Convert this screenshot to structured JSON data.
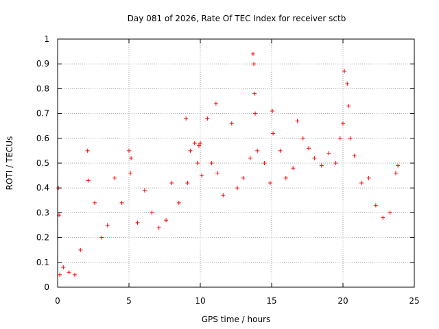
{
  "chart_data": {
    "type": "scatter",
    "title": "Day 081 of 2026, Rate Of TEC Index for receiver sctb",
    "xlabel": "GPS time / hours",
    "ylabel": "ROTI / TECUs",
    "xlim": [
      0,
      25
    ],
    "ylim": [
      0,
      1
    ],
    "x_ticks": [
      "0",
      "5",
      "10",
      "15",
      "20",
      "25"
    ],
    "y_ticks": [
      "0",
      "0.1",
      "0.2",
      "0.3",
      "0.4",
      "0.5",
      "0.6",
      "0.7",
      "0.8",
      "0.9",
      "1"
    ],
    "grid": true,
    "marker": "plus",
    "color": "#ff0000",
    "series": [
      {
        "x": [
          0.05,
          0.1,
          0.15,
          0.4,
          0.8,
          1.2,
          1.6,
          2.1,
          2.15,
          2.6,
          3.1,
          3.5,
          4.0,
          4.5,
          5.0,
          5.1,
          5.15,
          5.6,
          6.1,
          6.6,
          7.1,
          7.6,
          8.0,
          8.5,
          9.0,
          9.1,
          9.3,
          9.6,
          9.8,
          9.9,
          10.0,
          10.1,
          10.5,
          10.8,
          11.1,
          11.2,
          11.6,
          12.2,
          12.6,
          13.0,
          13.5,
          13.7,
          13.75,
          13.8,
          13.85,
          14.0,
          14.5,
          14.9,
          15.05,
          15.1,
          15.6,
          16.0,
          16.5,
          16.8,
          17.2,
          17.6,
          18.0,
          18.5,
          19.0,
          19.5,
          19.8,
          20.0,
          20.1,
          20.3,
          20.4,
          20.5,
          20.8,
          21.3,
          21.8,
          22.3,
          22.8,
          23.3,
          23.7,
          23.85
        ],
        "y": [
          0.4,
          0.29,
          0.05,
          0.08,
          0.06,
          0.05,
          0.15,
          0.55,
          0.43,
          0.34,
          0.2,
          0.25,
          0.44,
          0.34,
          0.55,
          0.46,
          0.52,
          0.26,
          0.39,
          0.3,
          0.24,
          0.27,
          0.42,
          0.34,
          0.68,
          0.42,
          0.55,
          0.58,
          0.5,
          0.57,
          0.58,
          0.45,
          0.68,
          0.5,
          0.74,
          0.46,
          0.37,
          0.66,
          0.4,
          0.44,
          0.52,
          0.94,
          0.9,
          0.78,
          0.7,
          0.55,
          0.5,
          0.42,
          0.71,
          0.62,
          0.55,
          0.44,
          0.48,
          0.67,
          0.6,
          0.56,
          0.52,
          0.49,
          0.54,
          0.5,
          0.6,
          0.66,
          0.87,
          0.82,
          0.73,
          0.6,
          0.53,
          0.42,
          0.44,
          0.33,
          0.28,
          0.3,
          0.46,
          0.49
        ]
      }
    ]
  }
}
